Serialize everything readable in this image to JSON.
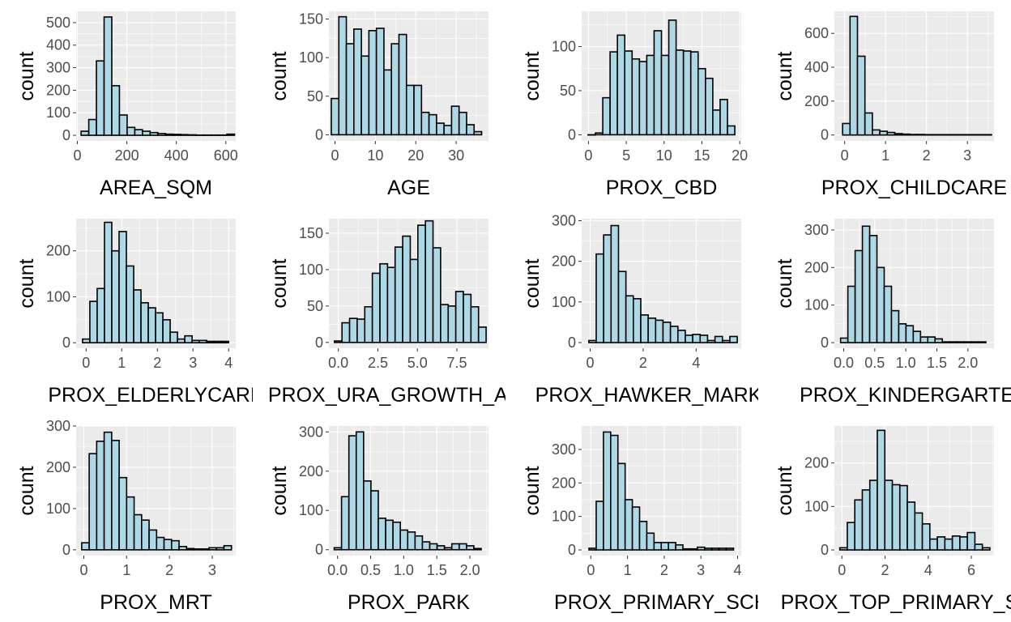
{
  "chart_data": [
    {
      "type": "bar",
      "xlabel": "AREA_SQM",
      "ylabel": "count",
      "xlim": [
        -5,
        640
      ],
      "ylim": [
        -25,
        550
      ],
      "x_ticks": [
        0,
        200,
        400,
        600
      ],
      "x_tick_labels": [
        "0",
        "200",
        "400",
        "600"
      ],
      "y_ticks": [
        0,
        100,
        200,
        300,
        400,
        500
      ],
      "y_tick_labels": [
        "0",
        "100",
        "200",
        "300",
        "400",
        "500"
      ],
      "bin_start": 15,
      "bin_width": 31,
      "values": [
        18,
        70,
        330,
        525,
        220,
        90,
        35,
        25,
        18,
        12,
        8,
        5,
        4,
        3,
        2,
        1,
        1,
        1,
        1,
        5
      ]
    },
    {
      "type": "bar",
      "xlabel": "AGE",
      "ylabel": "count",
      "xlim": [
        -1.5,
        38
      ],
      "ylim": [
        -8,
        160
      ],
      "x_ticks": [
        0,
        10,
        20,
        30
      ],
      "x_tick_labels": [
        "0",
        "10",
        "20",
        "30"
      ],
      "y_ticks": [
        0,
        50,
        100,
        150
      ],
      "y_tick_labels": [
        "0",
        "50",
        "100",
        "150"
      ],
      "bin_start": -0.9,
      "bin_width": 1.86,
      "values": [
        47,
        153,
        118,
        137,
        102,
        135,
        138,
        84,
        118,
        130,
        64,
        64,
        29,
        26,
        15,
        12,
        37,
        29,
        13,
        4
      ]
    },
    {
      "type": "bar",
      "xlabel": "PROX_CBD",
      "ylabel": "count",
      "xlim": [
        -0.9,
        20.2
      ],
      "ylim": [
        -7,
        140
      ],
      "x_ticks": [
        0,
        5,
        10,
        15,
        20
      ],
      "x_tick_labels": [
        "0",
        "5",
        "10",
        "15",
        "20"
      ],
      "y_ticks": [
        0,
        50,
        100
      ],
      "y_tick_labels": [
        "0",
        "50",
        "100"
      ],
      "bin_start": -0.05,
      "bin_width": 0.97,
      "values": [
        0,
        2,
        42,
        94,
        113,
        95,
        86,
        83,
        90,
        118,
        90,
        130,
        96,
        95,
        94,
        75,
        64,
        28,
        40,
        10
      ]
    },
    {
      "type": "bar",
      "xlabel": "PROX_CHILDCARE",
      "ylabel": "count",
      "xlim": [
        -0.25,
        3.65
      ],
      "ylim": [
        -35,
        730
      ],
      "x_ticks": [
        0,
        1,
        2,
        3
      ],
      "x_tick_labels": [
        "0",
        "1",
        "2",
        "3"
      ],
      "y_ticks": [
        0,
        200,
        400,
        600
      ],
      "y_tick_labels": [
        "0",
        "200",
        "400",
        "600"
      ],
      "bin_start": -0.05,
      "bin_width": 0.182,
      "values": [
        68,
        700,
        465,
        130,
        30,
        22,
        15,
        8,
        5,
        3,
        3,
        2,
        2,
        2,
        2,
        2,
        2,
        2,
        2,
        2
      ]
    },
    {
      "type": "bar",
      "xlabel": "PROX_ELDERLYCARE",
      "ylabel": "count",
      "xlim": [
        -0.28,
        4.2
      ],
      "ylim": [
        -12,
        270
      ],
      "x_ticks": [
        0,
        1,
        2,
        3,
        4
      ],
      "x_tick_labels": [
        "0",
        "1",
        "2",
        "3",
        "4"
      ],
      "y_ticks": [
        0,
        100,
        200
      ],
      "y_tick_labels": [
        "0",
        "100",
        "200"
      ],
      "bin_start": -0.1,
      "bin_width": 0.205,
      "values": [
        8,
        90,
        118,
        262,
        200,
        242,
        167,
        115,
        87,
        76,
        65,
        50,
        23,
        8,
        15,
        5,
        5,
        3,
        3,
        3
      ]
    },
    {
      "type": "bar",
      "xlabel": "PROX_URA_GROWTH_AREA",
      "ylabel": "count",
      "xlim": [
        -0.6,
        9.5
      ],
      "ylim": [
        -8,
        170
      ],
      "x_ticks": [
        0,
        2.5,
        5,
        7.5
      ],
      "x_tick_labels": [
        "0.0",
        "2.5",
        "5.0",
        "7.5"
      ],
      "y_ticks": [
        0,
        50,
        100,
        150
      ],
      "y_tick_labels": [
        "0",
        "50",
        "100",
        "150"
      ],
      "bin_start": -0.25,
      "bin_width": 0.48,
      "values": [
        2,
        27,
        33,
        32,
        49,
        95,
        108,
        103,
        131,
        146,
        114,
        161,
        167,
        130,
        52,
        50,
        70,
        66,
        49,
        21
      ]
    },
    {
      "type": "bar",
      "xlabel": "PROX_HAWKER_MARKET",
      "ylabel": "count",
      "xlim": [
        -0.32,
        5.7
      ],
      "ylim": [
        -14,
        305
      ],
      "x_ticks": [
        0,
        2,
        4
      ],
      "x_tick_labels": [
        "0",
        "2",
        "4"
      ],
      "y_ticks": [
        0,
        100,
        200,
        300
      ],
      "y_tick_labels": [
        "0",
        "100",
        "200",
        "300"
      ],
      "bin_start": -0.05,
      "bin_width": 0.28,
      "values": [
        5,
        218,
        265,
        288,
        175,
        115,
        108,
        68,
        60,
        55,
        50,
        40,
        30,
        18,
        20,
        18,
        5,
        15,
        5,
        15
      ]
    },
    {
      "type": "bar",
      "xlabel": "PROX_KINDERGARTEN",
      "ylabel": "count",
      "xlim": [
        -0.15,
        2.42
      ],
      "ylim": [
        -15,
        330
      ],
      "x_ticks": [
        0,
        0.5,
        1,
        1.5,
        2
      ],
      "x_tick_labels": [
        "0.0",
        "0.5",
        "1.0",
        "1.5",
        "2.0"
      ],
      "y_ticks": [
        0,
        100,
        200,
        300
      ],
      "y_tick_labels": [
        "0",
        "100",
        "200",
        "300"
      ],
      "bin_start": -0.05,
      "bin_width": 0.117,
      "values": [
        12,
        150,
        245,
        310,
        285,
        200,
        150,
        85,
        50,
        45,
        30,
        15,
        15,
        10,
        2,
        2,
        2,
        2,
        2,
        2
      ]
    },
    {
      "type": "bar",
      "xlabel": "PROX_MRT",
      "ylabel": "count",
      "xlim": [
        -0.18,
        3.55
      ],
      "ylim": [
        -14,
        300
      ],
      "x_ticks": [
        0,
        1,
        2,
        3
      ],
      "x_tick_labels": [
        "0",
        "1",
        "2",
        "3"
      ],
      "y_ticks": [
        0,
        100,
        200,
        300
      ],
      "y_tick_labels": [
        "0",
        "100",
        "200",
        "300"
      ],
      "bin_start": -0.05,
      "bin_width": 0.175,
      "values": [
        17,
        233,
        263,
        285,
        265,
        175,
        128,
        85,
        72,
        48,
        30,
        25,
        22,
        8,
        3,
        2,
        2,
        5,
        5,
        10
      ]
    },
    {
      "type": "bar",
      "xlabel": "PROX_PARK",
      "ylabel": "count",
      "xlim": [
        -0.13,
        2.28
      ],
      "ylim": [
        -15,
        315
      ],
      "x_ticks": [
        0,
        0.5,
        1,
        1.5,
        2
      ],
      "x_tick_labels": [
        "0.0",
        "0.5",
        "1.0",
        "1.5",
        "2.0"
      ],
      "y_ticks": [
        0,
        100,
        200,
        300
      ],
      "y_tick_labels": [
        "0",
        "100",
        "200",
        "300"
      ],
      "bin_start": -0.05,
      "bin_width": 0.111,
      "values": [
        5,
        135,
        290,
        300,
        175,
        150,
        80,
        75,
        70,
        50,
        45,
        35,
        20,
        15,
        10,
        5,
        15,
        15,
        10,
        3
      ]
    },
    {
      "type": "bar",
      "xlabel": "PROX_PRIMARY_SCH",
      "ylabel": "count",
      "xlim": [
        -0.25,
        4.1
      ],
      "ylim": [
        -17,
        370
      ],
      "x_ticks": [
        0,
        1,
        2,
        3,
        4
      ],
      "x_tick_labels": [
        "0",
        "1",
        "2",
        "3",
        "4"
      ],
      "y_ticks": [
        0,
        100,
        200,
        300
      ],
      "y_tick_labels": [
        "0",
        "100",
        "200",
        "300"
      ],
      "bin_start": -0.05,
      "bin_width": 0.197,
      "values": [
        5,
        145,
        352,
        342,
        258,
        150,
        128,
        85,
        50,
        22,
        22,
        22,
        15,
        3,
        3,
        8,
        5,
        5,
        5,
        5
      ]
    },
    {
      "type": "bar",
      "xlabel": "PROX_TOP_PRIMARY_SCH",
      "ylabel": "count",
      "xlim": [
        -0.35,
        7.05
      ],
      "ylim": [
        -13,
        285
      ],
      "x_ticks": [
        0,
        2,
        4,
        6
      ],
      "x_tick_labels": [
        "0",
        "2",
        "4",
        "6"
      ],
      "y_ticks": [
        0,
        100,
        200
      ],
      "y_tick_labels": [
        "0",
        "100",
        "200"
      ],
      "bin_start": -0.1,
      "bin_width": 0.348,
      "values": [
        5,
        63,
        115,
        138,
        160,
        275,
        160,
        150,
        148,
        110,
        85,
        60,
        25,
        30,
        25,
        32,
        30,
        40,
        13,
        5
      ]
    }
  ]
}
